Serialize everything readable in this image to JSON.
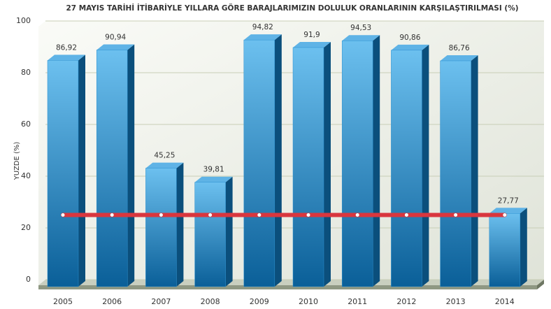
{
  "chart_data": {
    "type": "bar",
    "title": "27 MAYIS TARİHİ İTİBARİYLE YILLARA GÖRE BARAJLARIMIZIN DOLULUK ORANLARININ KARŞILAŞTIRILMASI (%)",
    "y_label": "YUZDE (%)",
    "categories": [
      "2005",
      "2006",
      "2007",
      "2008",
      "2009",
      "2010",
      "2011",
      "2012",
      "2013",
      "2014"
    ],
    "series": [
      {
        "type": "bar",
        "color": "#2a8fcf",
        "values": [
          86.92,
          90.94,
          45.25,
          39.81,
          94.82,
          91.9,
          94.53,
          90.86,
          86.76,
          27.77
        ],
        "value_labels": [
          "86,92",
          "90,94",
          "45,25",
          "39,81",
          "94,82",
          "91,9",
          "94,53",
          "90,86",
          "86,76",
          "27,77"
        ]
      },
      {
        "type": "line",
        "color": "#d9363e",
        "values": [
          25,
          25,
          25,
          25,
          25,
          25,
          25,
          25,
          25,
          25
        ]
      }
    ],
    "ylim": [
      0,
      100
    ],
    "yticks": [
      0,
      20,
      40,
      60,
      80,
      100
    ],
    "grid": true
  }
}
